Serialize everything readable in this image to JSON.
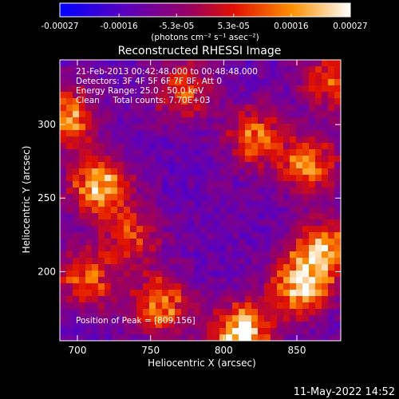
{
  "chart_data": {
    "type": "heatmap",
    "title": "Reconstructed RHESSI Image",
    "xlabel": "Heliocentric X (arcsec)",
    "ylabel": "Heliocentric Y (arcsec)",
    "xlim": [
      688,
      880
    ],
    "ylim": [
      153,
      344
    ],
    "x_ticks": [
      700,
      750,
      800,
      850
    ],
    "y_ticks": [
      200,
      250,
      300
    ],
    "x_tick_labels": [
      "700",
      "750",
      "800",
      "850"
    ],
    "y_tick_labels": [
      "200",
      "250",
      "300"
    ],
    "colorbar": {
      "range": [
        -0.00027,
        0.00027
      ],
      "ticks": [
        -0.00027,
        -0.00016,
        -5.3e-05,
        5.3e-05,
        0.00016,
        0.00027
      ],
      "tick_labels": [
        "-0.00027",
        "-0.00016",
        "-5.3e-05",
        "5.3e-05",
        "0.00016",
        "0.00027"
      ],
      "unit_label": "(photons cm⁻² s⁻¹ asec⁻²)",
      "colors": [
        "#0000ff",
        "#6a00a8",
        "#b00040",
        "#ff2000",
        "#ff9a00",
        "#ffffff"
      ]
    },
    "annotations": [
      "21-Feb-2013 00:42:48.000 to 00:48:48.000",
      "Detectors: 3F 4F 5F 6F 7F 8F, Att 0",
      "Energy Range: 25.0 - 50.0 keV",
      "Clean     Total counts: 7.70E+03"
    ],
    "peak_label": "Position of Peak = [809,156]",
    "hotspots": [
      {
        "x": 812,
        "y": 157,
        "value": 0.00027
      },
      {
        "x": 852,
        "y": 190,
        "value": 0.00022
      },
      {
        "x": 868,
        "y": 214,
        "value": 0.00018
      },
      {
        "x": 715,
        "y": 258,
        "value": 0.0002
      },
      {
        "x": 693,
        "y": 305,
        "value": 0.00017
      },
      {
        "x": 757,
        "y": 177,
        "value": 0.00015
      },
      {
        "x": 858,
        "y": 272,
        "value": 0.00014
      },
      {
        "x": 822,
        "y": 292,
        "value": 0.00012
      },
      {
        "x": 772,
        "y": 323,
        "value": 0.0001
      },
      {
        "x": 706,
        "y": 195,
        "value": 0.00011
      },
      {
        "x": 873,
        "y": 330,
        "value": 9e-05
      },
      {
        "x": 737,
        "y": 224,
        "value": 8e-05
      }
    ]
  },
  "footer": {
    "timestamp": "11-May-2022 14:52"
  }
}
